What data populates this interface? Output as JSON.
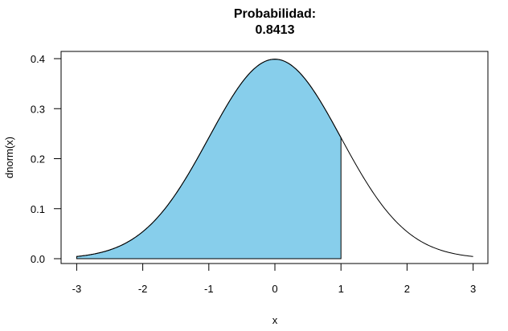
{
  "chart_data": {
    "type": "area",
    "title": "Probabilidad:",
    "subtitle": "0.8413",
    "xlabel": "x",
    "ylabel": "dnorm(x)",
    "xlim": [
      -3.25,
      3.25
    ],
    "ylim": [
      -0.01,
      0.41
    ],
    "x_ticks": [
      "-3",
      "-2",
      "-1",
      "0",
      "1",
      "2",
      "3"
    ],
    "y_ticks": [
      "0.0",
      "0.1",
      "0.2",
      "0.3",
      "0.4"
    ],
    "curve": "standard normal density, x from -3 to 3",
    "shaded_region": {
      "from": -3,
      "to": 1,
      "color": "#87CEEB"
    },
    "probability": 0.8413,
    "grid": false,
    "legend": null
  }
}
